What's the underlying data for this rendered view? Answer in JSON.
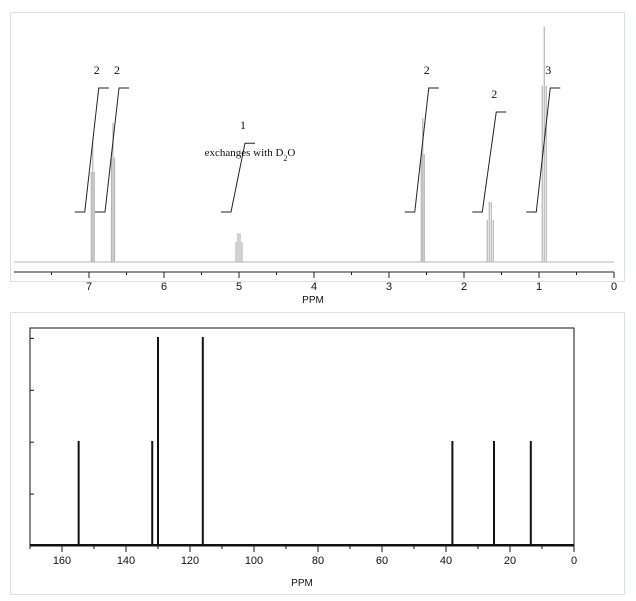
{
  "chart_data": [
    {
      "type": "line",
      "title": "",
      "xlabel": "PPM",
      "ylabel": "",
      "xlim": [
        8,
        0
      ],
      "x_axis_reversed": true,
      "x_ticks": [
        "7",
        "6",
        "5",
        "4",
        "3",
        "2",
        "1",
        "0"
      ],
      "grid": false,
      "line_color": "#b5b5b5",
      "peaks": [
        {
          "ppm": 6.95,
          "height": 0.5,
          "integration": "2"
        },
        {
          "ppm": 6.68,
          "height": 0.58,
          "integration": "2"
        },
        {
          "ppm": 5.0,
          "height": 0.12,
          "integration": "1",
          "annotation": "exchanges with D",
          "annotation_sub": "2",
          "annotation_tail": "O"
        },
        {
          "ppm": 2.55,
          "height": 0.6,
          "integration": "2"
        },
        {
          "ppm": 1.65,
          "height": 0.25,
          "integration": "2"
        },
        {
          "ppm": 0.93,
          "height": 0.98,
          "integration": "3"
        }
      ]
    },
    {
      "type": "bar",
      "title": "",
      "xlabel": "PPM",
      "ylabel": "",
      "xlim": [
        170,
        0
      ],
      "x_axis_reversed": true,
      "x_ticks": [
        "160",
        "140",
        "120",
        "100",
        "80",
        "60",
        "40",
        "20",
        "0"
      ],
      "grid": false,
      "line_color": "#111111",
      "peaks": [
        {
          "ppm": 154.8,
          "intensity": 0.5
        },
        {
          "ppm": 131.8,
          "intensity": 0.5
        },
        {
          "ppm": 130.0,
          "intensity": 1.0
        },
        {
          "ppm": 116.0,
          "intensity": 1.0
        },
        {
          "ppm": 38.0,
          "intensity": 0.5
        },
        {
          "ppm": 25.0,
          "intensity": 0.5
        },
        {
          "ppm": 13.5,
          "intensity": 0.5
        }
      ]
    }
  ]
}
